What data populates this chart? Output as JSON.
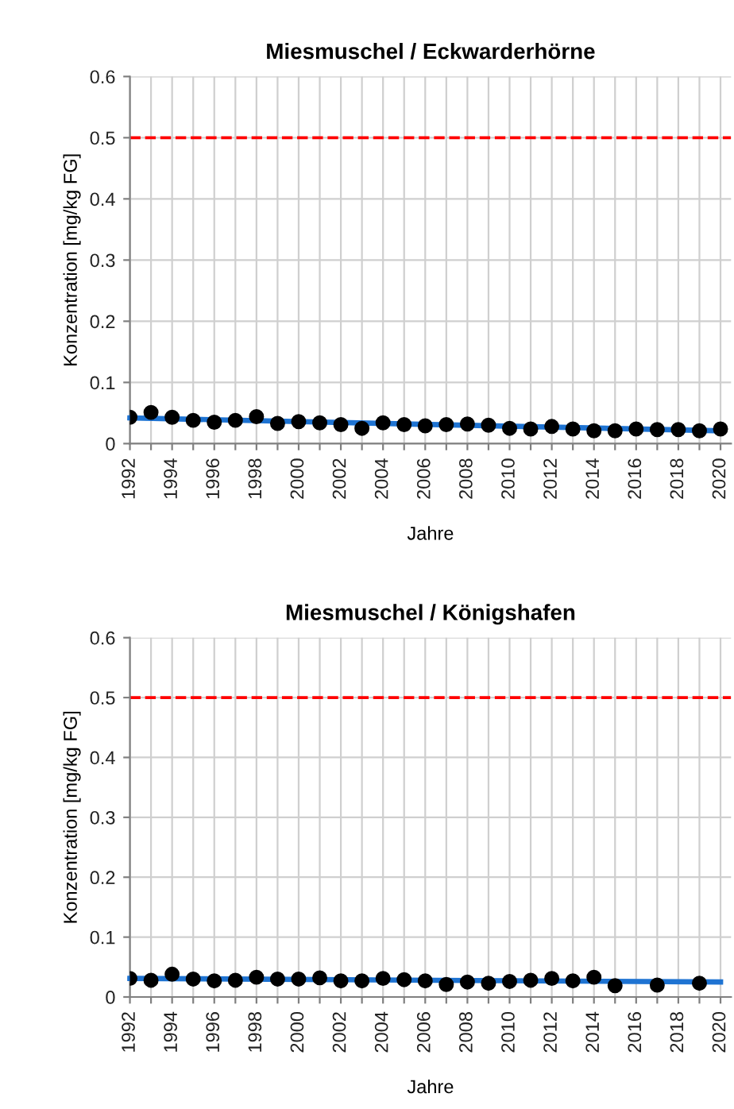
{
  "chart_data": [
    {
      "type": "scatter",
      "title": "Miesmuschel / Eckwarderhörne",
      "xlabel": "Jahre",
      "ylabel": "Konzentration [mg/kg FG]",
      "series": [
        {
          "color": "#000000",
          "marker": "circle",
          "x": [
            1992,
            1993,
            1994,
            1995,
            1996,
            1997,
            1998,
            1999,
            2000,
            2001,
            2002,
            2003,
            2004,
            2005,
            2006,
            2007,
            2008,
            2009,
            2010,
            2011,
            2012,
            2013,
            2014,
            2015,
            2016,
            2017,
            2018,
            2019,
            2020
          ],
          "values": [
            0.043,
            0.051,
            0.043,
            0.038,
            0.035,
            0.038,
            0.044,
            0.033,
            0.036,
            0.034,
            0.031,
            0.025,
            0.034,
            0.031,
            0.029,
            0.031,
            0.032,
            0.03,
            0.025,
            0.024,
            0.028,
            0.024,
            0.021,
            0.021,
            0.024,
            0.023,
            0.023,
            0.021,
            0.024
          ]
        },
        {
          "type": "line",
          "color": "#1e73d2",
          "line_style": "solid",
          "x": [
            1992,
            2020
          ],
          "values": [
            0.042,
            0.021
          ]
        }
      ],
      "xlim": [
        1992,
        2020.5
      ],
      "ylim": [
        0,
        0.6
      ],
      "xticks": [
        1992,
        {
          "value": 1993,
          "label": null
        },
        1994,
        {
          "value": 1995,
          "label": null
        },
        1996,
        {
          "value": 1997,
          "label": null
        },
        1998,
        {
          "value": 1999,
          "label": null
        },
        2000,
        {
          "value": 2001,
          "label": null
        },
        2002,
        {
          "value": 2003,
          "label": null
        },
        2004,
        {
          "value": 2005,
          "label": null
        },
        2006,
        {
          "value": 2007,
          "label": null
        },
        2008,
        {
          "value": 2009,
          "label": null
        },
        2010,
        {
          "value": 2011,
          "label": null
        },
        2012,
        {
          "value": 2013,
          "label": null
        },
        2014,
        {
          "value": 2015,
          "label": null
        },
        2016,
        {
          "value": 2017,
          "label": null
        },
        2018,
        {
          "value": 2019,
          "label": null
        },
        2020
      ],
      "yticks": [
        0,
        0.1,
        0.2,
        0.3,
        0.4,
        0.5,
        0.6
      ],
      "ref_lines": [
        {
          "axis": "y",
          "value": 0.5,
          "color": "#ff0000",
          "line_style": "dashed"
        }
      ],
      "grid": true
    },
    {
      "type": "scatter",
      "title": "Miesmuschel / Königshafen",
      "xlabel": "Jahre",
      "ylabel": "Konzentration [mg/kg FG]",
      "series": [
        {
          "color": "#000000",
          "marker": "circle",
          "x": [
            1992,
            1993,
            1994,
            1995,
            1996,
            1997,
            1998,
            1999,
            2000,
            2001,
            2002,
            2003,
            2004,
            2005,
            2006,
            2007,
            2008,
            2009,
            2010,
            2011,
            2012,
            2013,
            2014,
            2015,
            2017,
            2019
          ],
          "values": [
            0.031,
            0.028,
            0.038,
            0.03,
            0.027,
            0.028,
            0.033,
            0.03,
            0.03,
            0.032,
            0.027,
            0.027,
            0.031,
            0.029,
            0.027,
            0.021,
            0.025,
            0.023,
            0.026,
            0.028,
            0.031,
            0.027,
            0.033,
            0.019,
            0.02,
            0.023
          ]
        },
        {
          "type": "line",
          "color": "#1e73d2",
          "line_style": "solid",
          "x": [
            1992,
            2020
          ],
          "values": [
            0.031,
            0.025
          ]
        }
      ],
      "xlim": [
        1992,
        2020.5
      ],
      "ylim": [
        0,
        0.6
      ],
      "xticks": [
        1992,
        {
          "value": 1993,
          "label": null
        },
        1994,
        {
          "value": 1995,
          "label": null
        },
        1996,
        {
          "value": 1997,
          "label": null
        },
        1998,
        {
          "value": 1999,
          "label": null
        },
        2000,
        {
          "value": 2001,
          "label": null
        },
        2002,
        {
          "value": 2003,
          "label": null
        },
        2004,
        {
          "value": 2005,
          "label": null
        },
        2006,
        {
          "value": 2007,
          "label": null
        },
        2008,
        {
          "value": 2009,
          "label": null
        },
        2010,
        {
          "value": 2011,
          "label": null
        },
        2012,
        {
          "value": 2013,
          "label": null
        },
        2014,
        {
          "value": 2015,
          "label": null
        },
        2016,
        {
          "value": 2017,
          "label": null
        },
        2018,
        {
          "value": 2019,
          "label": null
        },
        2020
      ],
      "yticks": [
        0,
        0.1,
        0.2,
        0.3,
        0.4,
        0.5,
        0.6
      ],
      "ref_lines": [
        {
          "axis": "y",
          "value": 0.5,
          "color": "#ff0000",
          "line_style": "dashed"
        }
      ],
      "grid": true
    }
  ]
}
